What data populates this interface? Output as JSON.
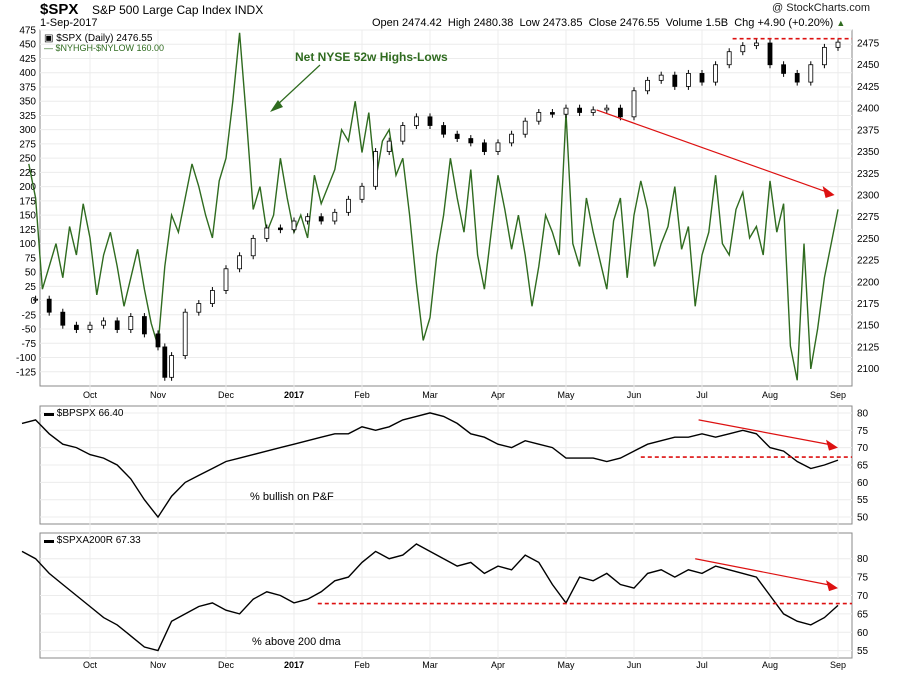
{
  "header": {
    "symbol": "$SPX",
    "name": "S&P 500 Large Cap Index  INDX",
    "date": "1-Sep-2017",
    "ohlc": {
      "open_label": "Open",
      "open": "2474.42",
      "high_label": "High",
      "high": "2480.38",
      "low_label": "Low",
      "low": "2473.85",
      "close_label": "Close",
      "close": "2476.55",
      "volume_label": "Volume",
      "volume": "1.5B",
      "chg_label": "Chg",
      "chg": "+4.90 (+0.20%)",
      "chg_arrow": "▲"
    },
    "logo": "@ StockCharts.com"
  },
  "colors": {
    "price": "#000000",
    "green": "#2f6b1f",
    "red": "#dd1111",
    "grid": "#ececec",
    "axis": "#888888"
  },
  "chart_data": [
    {
      "type": "line",
      "panel": "main",
      "legend": [
        {
          "name": "$SPX (Daily) 2476.55",
          "marker": "candles",
          "color": "#000000"
        },
        {
          "name": "$NYHGH-$NYLOW 160.00",
          "marker": "line",
          "color": "#2f6b1f"
        }
      ],
      "annotation": "Net NYSE 52w Highs-Lows",
      "x_labels": [
        "Oct",
        "Nov",
        "Dec",
        "2017",
        "Feb",
        "Mar",
        "Apr",
        "May",
        "Jun",
        "Jul",
        "Aug",
        "Sep"
      ],
      "left_axis": {
        "range": [
          -150,
          475
        ],
        "ticks": [
          475,
          450,
          425,
          400,
          375,
          350,
          325,
          300,
          275,
          250,
          225,
          200,
          175,
          150,
          125,
          100,
          75,
          50,
          25,
          0,
          -25,
          -50,
          -75,
          -100,
          -125
        ]
      },
      "right_axis": {
        "range": [
          2080,
          2490
        ],
        "ticks": [
          2475,
          2450,
          2425,
          2400,
          2375,
          2350,
          2325,
          2300,
          2275,
          2250,
          2225,
          2200,
          2175,
          2150,
          2125,
          2100
        ]
      },
      "spx_series": {
        "name": "$SPX",
        "x_months": [
          -0.8,
          -0.6,
          -0.4,
          -0.2,
          0,
          0.2,
          0.4,
          0.6,
          0.8,
          1.0,
          1.1,
          1.2,
          1.4,
          1.6,
          1.8,
          2.0,
          2.2,
          2.4,
          2.6,
          2.8,
          3.0,
          3.2,
          3.4,
          3.6,
          3.8,
          4.0,
          4.2,
          4.4,
          4.6,
          4.8,
          5.0,
          5.2,
          5.4,
          5.6,
          5.8,
          6.0,
          6.2,
          6.4,
          6.6,
          6.8,
          7.0,
          7.2,
          7.4,
          7.6,
          7.8,
          8.0,
          8.2,
          8.4,
          8.6,
          8.8,
          9.0,
          9.2,
          9.4,
          9.6,
          9.8,
          10.0,
          10.2,
          10.4,
          10.6,
          10.8,
          11.0
        ],
        "values": [
          2180,
          2165,
          2150,
          2145,
          2150,
          2155,
          2145,
          2160,
          2140,
          2125,
          2090,
          2115,
          2165,
          2175,
          2190,
          2215,
          2230,
          2250,
          2262,
          2260,
          2270,
          2275,
          2270,
          2280,
          2295,
          2310,
          2350,
          2362,
          2380,
          2390,
          2380,
          2370,
          2365,
          2360,
          2350,
          2360,
          2370,
          2385,
          2395,
          2393,
          2400,
          2395,
          2398,
          2400,
          2390,
          2420,
          2432,
          2438,
          2425,
          2440,
          2430,
          2450,
          2465,
          2472,
          2475,
          2450,
          2440,
          2430,
          2450,
          2470,
          2476
        ]
      },
      "breadth_series": {
        "name": "$NYHGH-$NYLOW",
        "x_months": [
          -0.9,
          -0.8,
          -0.7,
          -0.6,
          -0.5,
          -0.4,
          -0.3,
          -0.2,
          -0.1,
          0,
          0.1,
          0.2,
          0.3,
          0.4,
          0.5,
          0.6,
          0.7,
          0.8,
          0.9,
          1.0,
          1.1,
          1.2,
          1.3,
          1.4,
          1.5,
          1.6,
          1.7,
          1.8,
          1.9,
          2.0,
          2.1,
          2.2,
          2.3,
          2.4,
          2.5,
          2.6,
          2.7,
          2.8,
          2.9,
          3.0,
          3.1,
          3.2,
          3.3,
          3.4,
          3.5,
          3.6,
          3.7,
          3.8,
          3.9,
          4.0,
          4.1,
          4.2,
          4.3,
          4.4,
          4.5,
          4.6,
          4.7,
          4.8,
          4.9,
          5.0,
          5.1,
          5.2,
          5.3,
          5.4,
          5.5,
          5.6,
          5.7,
          5.8,
          5.9,
          6.0,
          6.1,
          6.2,
          6.3,
          6.4,
          6.5,
          6.6,
          6.7,
          6.8,
          6.9,
          7.0,
          7.1,
          7.2,
          7.3,
          7.4,
          7.5,
          7.6,
          7.7,
          7.8,
          7.9,
          8.0,
          8.1,
          8.2,
          8.3,
          8.4,
          8.5,
          8.6,
          8.7,
          8.8,
          8.9,
          9.0,
          9.1,
          9.2,
          9.3,
          9.4,
          9.5,
          9.6,
          9.7,
          9.8,
          9.9,
          10.0,
          10.1,
          10.2,
          10.3,
          10.4,
          10.5,
          10.6,
          10.7,
          10.8,
          10.9,
          11.0
        ],
        "values": [
          240,
          180,
          20,
          60,
          100,
          40,
          130,
          80,
          170,
          110,
          10,
          80,
          120,
          60,
          -10,
          40,
          90,
          20,
          -40,
          -80,
          60,
          150,
          120,
          180,
          240,
          200,
          150,
          110,
          210,
          250,
          350,
          470,
          320,
          160,
          200,
          120,
          150,
          250,
          180,
          120,
          150,
          110,
          220,
          170,
          200,
          230,
          300,
          280,
          350,
          260,
          330,
          210,
          280,
          300,
          220,
          250,
          150,
          30,
          -70,
          -30,
          80,
          150,
          250,
          180,
          120,
          230,
          80,
          20,
          120,
          220,
          160,
          90,
          150,
          80,
          -10,
          60,
          150,
          120,
          80,
          330,
          100,
          60,
          180,
          120,
          70,
          20,
          140,
          180,
          40,
          150,
          210,
          160,
          60,
          100,
          130,
          200,
          90,
          130,
          -10,
          80,
          120,
          220,
          100,
          80,
          160,
          190,
          110,
          130,
          80,
          210,
          120,
          170,
          -80,
          -140,
          100,
          -120,
          -50,
          40,
          100,
          160
        ]
      },
      "trend_arrow": {
        "from_month": 7.45,
        "from_value": 2398,
        "to_month": 10.95,
        "to_value": 2300
      },
      "resistance_level": 2480
    },
    {
      "type": "line",
      "panel": "bpspx",
      "legend": [
        {
          "name": "$BPSPX 66.40",
          "color": "#000000"
        }
      ],
      "annotation": "% bullish on P&F",
      "right_axis": {
        "range": [
          48,
          82
        ],
        "ticks": [
          80,
          75,
          70,
          65,
          60,
          55,
          50
        ]
      },
      "series": {
        "name": "$BPSPX",
        "x_months": [
          -1.0,
          -0.8,
          -0.6,
          -0.4,
          -0.2,
          0,
          0.2,
          0.4,
          0.6,
          0.8,
          1.0,
          1.2,
          1.4,
          1.6,
          1.8,
          2.0,
          2.2,
          2.4,
          2.6,
          2.8,
          3.0,
          3.2,
          3.4,
          3.6,
          3.8,
          4.0,
          4.2,
          4.4,
          4.6,
          4.8,
          5.0,
          5.2,
          5.4,
          5.6,
          5.8,
          6.0,
          6.2,
          6.4,
          6.6,
          6.8,
          7.0,
          7.2,
          7.4,
          7.6,
          7.8,
          8.0,
          8.2,
          8.4,
          8.6,
          8.8,
          9.0,
          9.2,
          9.4,
          9.6,
          9.8,
          10.0,
          10.2,
          10.4,
          10.6,
          10.8,
          11.0
        ],
        "values": [
          77,
          78,
          74,
          71,
          70,
          68,
          67,
          65,
          61,
          55,
          50,
          56,
          60,
          62,
          64,
          66,
          67,
          68,
          69,
          70,
          71,
          72,
          73,
          74,
          74,
          76,
          75,
          76,
          78,
          79,
          80,
          79,
          77,
          74,
          73,
          71,
          70,
          72,
          71,
          70,
          67,
          67,
          67,
          66,
          67,
          69,
          71,
          72,
          73,
          73,
          74,
          73,
          74,
          75,
          74,
          70,
          69,
          66,
          64,
          65,
          66.4
        ]
      },
      "trend_arrow": {
        "from_month": 8.95,
        "from_value": 78,
        "to_month": 11.0,
        "to_value": 70
      },
      "support_level": 67.3
    },
    {
      "type": "line",
      "panel": "spxa200r",
      "legend": [
        {
          "name": "$SPXA200R 67.33",
          "color": "#000000"
        }
      ],
      "annotation": "% above 200 dma",
      "right_axis": {
        "range": [
          53,
          87
        ],
        "ticks": [
          80,
          75,
          70,
          65,
          60,
          55
        ]
      },
      "series": {
        "name": "$SPXA200R",
        "x_months": [
          -1.0,
          -0.8,
          -0.6,
          -0.4,
          -0.2,
          0,
          0.2,
          0.4,
          0.6,
          0.8,
          1.0,
          1.2,
          1.4,
          1.6,
          1.8,
          2.0,
          2.2,
          2.4,
          2.6,
          2.8,
          3.0,
          3.2,
          3.4,
          3.6,
          3.8,
          4.0,
          4.2,
          4.4,
          4.6,
          4.8,
          5.0,
          5.2,
          5.4,
          5.6,
          5.8,
          6.0,
          6.2,
          6.4,
          6.6,
          6.8,
          7.0,
          7.2,
          7.4,
          7.6,
          7.8,
          8.0,
          8.2,
          8.4,
          8.6,
          8.8,
          9.0,
          9.2,
          9.4,
          9.6,
          9.8,
          10.0,
          10.2,
          10.4,
          10.6,
          10.8,
          11.0
        ],
        "values": [
          82,
          80,
          76,
          73,
          70,
          67,
          64,
          62,
          59,
          56,
          55,
          63,
          65,
          67,
          68,
          66,
          65,
          69,
          71,
          70,
          68,
          69,
          71,
          74,
          75,
          79,
          82,
          80,
          81,
          84,
          82,
          80,
          78,
          79,
          76,
          78,
          77,
          81,
          79,
          73,
          68,
          75,
          74,
          76,
          73,
          72,
          76,
          77,
          75,
          77,
          76,
          78,
          77,
          76,
          75,
          70,
          65,
          63,
          62,
          64,
          67.3
        ]
      },
      "trend_arrow": {
        "from_month": 8.9,
        "from_value": 80,
        "to_month": 11.0,
        "to_value": 72
      },
      "support_level": 67.8,
      "x_labels": [
        "Oct",
        "Nov",
        "Dec",
        "2017",
        "Feb",
        "Mar",
        "Apr",
        "May",
        "Jun",
        "Jul",
        "Aug",
        "Sep"
      ]
    }
  ]
}
